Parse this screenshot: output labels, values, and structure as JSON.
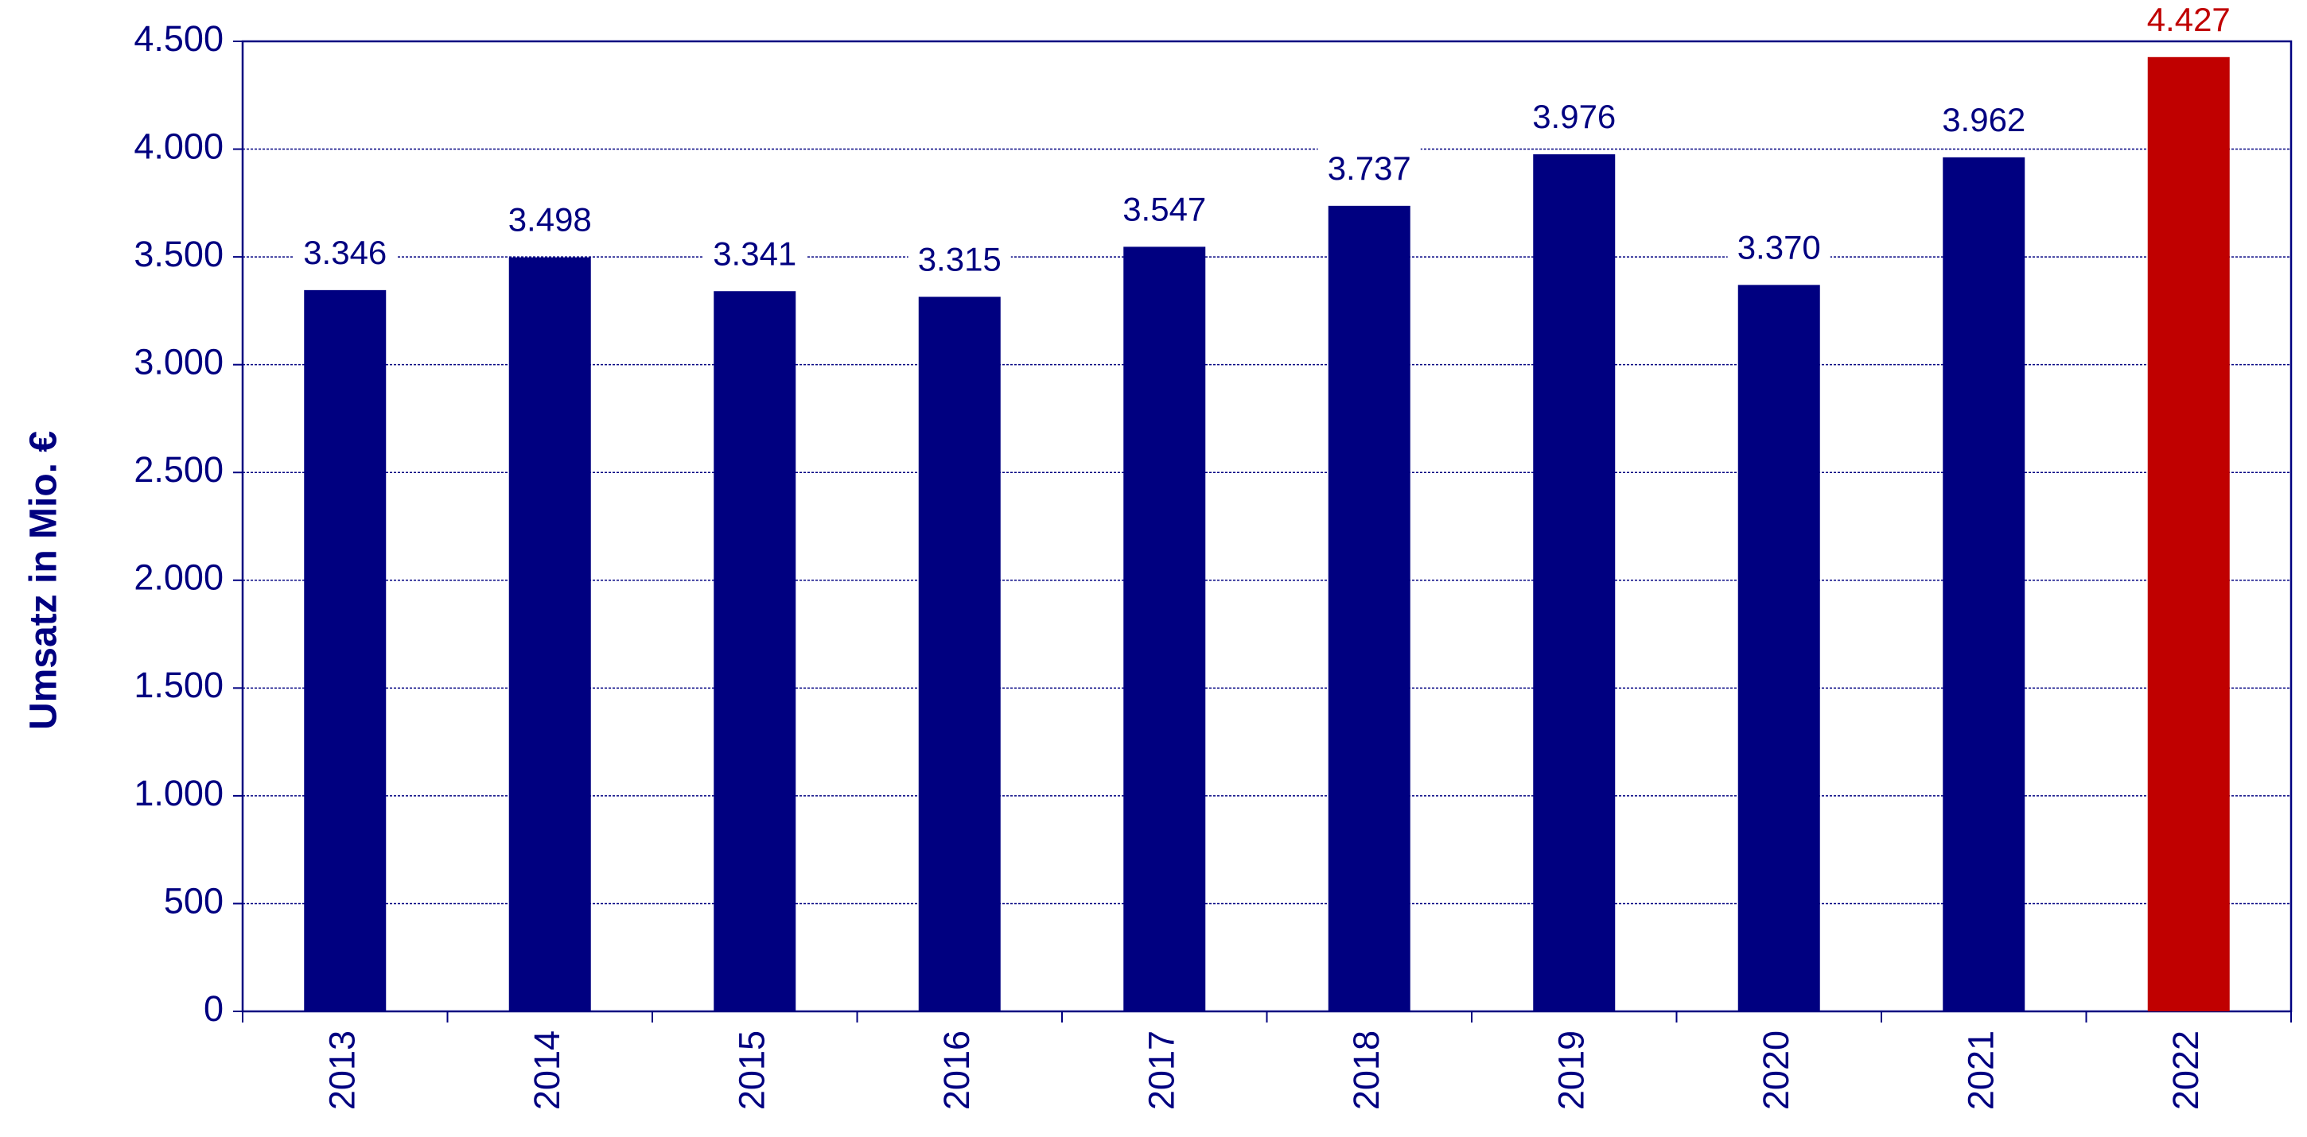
{
  "chart_data": {
    "type": "bar",
    "y_axis_label": "Umsatz in Mio. €",
    "categories": [
      "2013",
      "2014",
      "2015",
      "2016",
      "2017",
      "2018",
      "2019",
      "2020",
      "2021",
      "2022"
    ],
    "values": [
      3346,
      3498,
      3341,
      3315,
      3547,
      3737,
      3976,
      3370,
      3962,
      4427
    ],
    "value_labels": [
      "3.346",
      "3.498",
      "3.341",
      "3.315",
      "3.547",
      "3.737",
      "3.976",
      "3.370",
      "3.962",
      "4.427"
    ],
    "colors": [
      "#000080",
      "#000080",
      "#000080",
      "#000080",
      "#000080",
      "#000080",
      "#000080",
      "#000080",
      "#000080",
      "#c00000"
    ],
    "ylim": [
      0,
      4500
    ],
    "yticks": [
      0,
      500,
      {
        "value": 1000,
        "label": "1.000"
      },
      {
        "value": 1500,
        "label": "1.500"
      },
      {
        "value": 2000,
        "label": "2.000"
      },
      {
        "value": 2500,
        "label": "2.500"
      },
      {
        "value": 3000,
        "label": "3.000"
      },
      {
        "value": 3500,
        "label": "3.500"
      },
      {
        "value": 4000,
        "label": "4.000"
      },
      {
        "value": 4500,
        "label": "4.500"
      }
    ],
    "grid": true
  }
}
